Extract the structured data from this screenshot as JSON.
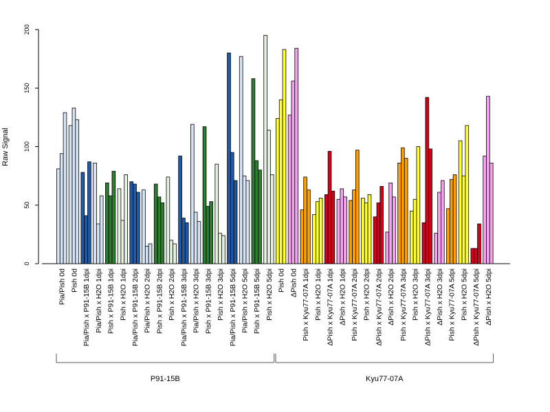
{
  "chart_data": {
    "type": "bar",
    "title": "",
    "xlabel": "",
    "ylabel": "Raw Signal",
    "ylim": [
      0,
      200
    ],
    "yticks": [
      0,
      50,
      100,
      150,
      200
    ],
    "grid": false,
    "legend": "none",
    "categories": [
      "Pia/Pish 0d",
      "Pish 0d",
      "Pia/Pish x P91-15B 1dpi",
      "Pia/Pish x H2O 1dpi",
      "Pish x P91-15B 1dpi",
      "Pish x H2O 1dpi",
      "Pia/Pish x P91-15B 2dpi",
      "Pia/Pish x H2O 2dpi",
      "Pish x P91-15B 2dpi",
      "Pish x H2O 2dpi",
      "Pia/Pish x P91-15B 3dpi",
      "Pia/Pish x H2O 3dpi",
      "Pish x P91-15B 3dpi",
      "Pish x H2O 3dpi",
      "Pia/Pish x P91-15B 5dpi",
      "Pia/Pish x H2O 5dpi",
      "Pish x P91-15B 5dpi",
      "Pish x H2O 5dpi",
      "Pish 0d",
      "ΔPish 0d",
      "Pish x Kyu77-07A 1dpi",
      "Pish x H2O 1dpi",
      "ΔPish x Kyu77-07A 1dpi",
      "ΔPish x H2O 1dpi",
      "Pish x Kyu77-07A 2dpi",
      "Pish x H2O 2dpi",
      "ΔPish x Kyu77-07A 2dpi",
      "ΔPish x H2O 2dpi",
      "Pish x Kyu77-07A 3dpi",
      "Pish x H2O 3dpi",
      "ΔPish x Kyu77-07A 3dpi",
      "ΔPish x H2O 3dpi",
      "Pish x Kyu77-07A 5dpi",
      "Pish x H2O 5dpi",
      "ΔPish x Kyu77-07A 5dpi",
      "ΔPish x H2O 5dpi"
    ],
    "bar_colors": [
      "#d6e4f5",
      "#d6e4f5",
      "#1f5aa6",
      "#d6e4f5",
      "#2e7d32",
      "#e6f2e0",
      "#1f5aa6",
      "#d6e4f5",
      "#2e7d32",
      "#e6f2e0",
      "#1f5aa6",
      "#d6e4f5",
      "#2e7d32",
      "#e6f2e0",
      "#1f5aa6",
      "#d6e4f5",
      "#2e7d32",
      "#e6f2e0",
      "#ffff33",
      "#f5a3f0",
      "#ff9f00",
      "#ffff33",
      "#d7001a",
      "#f5a3f0",
      "#ff9f00",
      "#ffff33",
      "#d7001a",
      "#f5a3f0",
      "#ff9f00",
      "#ffff33",
      "#d7001a",
      "#f5a3f0",
      "#ff9f00",
      "#ffff33",
      "#d7001a",
      "#f5a3f0"
    ],
    "values": [
      [
        81,
        94,
        129
      ],
      [
        118,
        133,
        123
      ],
      [
        78,
        41,
        87
      ],
      [
        86,
        34,
        58
      ],
      [
        69,
        58,
        79
      ],
      [
        64,
        37,
        76
      ],
      [
        70,
        68,
        61
      ],
      [
        63,
        15,
        17
      ],
      [
        68,
        57,
        52
      ],
      [
        74,
        20,
        17
      ],
      [
        92,
        39,
        35
      ],
      [
        119,
        44,
        36
      ],
      [
        117,
        49,
        53
      ],
      [
        85,
        26,
        24
      ],
      [
        180,
        95,
        71
      ],
      [
        177,
        75,
        71
      ],
      [
        158,
        88,
        80
      ],
      [
        195,
        114,
        76
      ],
      [
        124,
        140,
        183
      ],
      [
        127,
        156,
        184
      ],
      [
        46,
        74,
        63
      ],
      [
        42,
        53,
        56
      ],
      [
        59,
        96,
        62
      ],
      [
        55,
        64,
        57
      ],
      [
        54,
        63,
        97
      ],
      [
        56,
        52,
        59
      ],
      [
        40,
        52,
        66
      ],
      [
        27,
        69,
        57
      ],
      [
        86,
        99,
        90
      ],
      [
        45,
        55,
        100
      ],
      [
        35,
        142,
        98
      ],
      [
        26,
        61,
        71
      ],
      [
        47,
        72,
        76
      ],
      [
        105,
        75,
        118
      ],
      [
        13,
        13,
        34
      ],
      [
        92,
        143,
        86
      ]
    ],
    "groups": [
      {
        "label": "P91-15B",
        "from": 0,
        "to": 17
      },
      {
        "label": "Kyu77-07A",
        "from": 18,
        "to": 35
      }
    ]
  }
}
